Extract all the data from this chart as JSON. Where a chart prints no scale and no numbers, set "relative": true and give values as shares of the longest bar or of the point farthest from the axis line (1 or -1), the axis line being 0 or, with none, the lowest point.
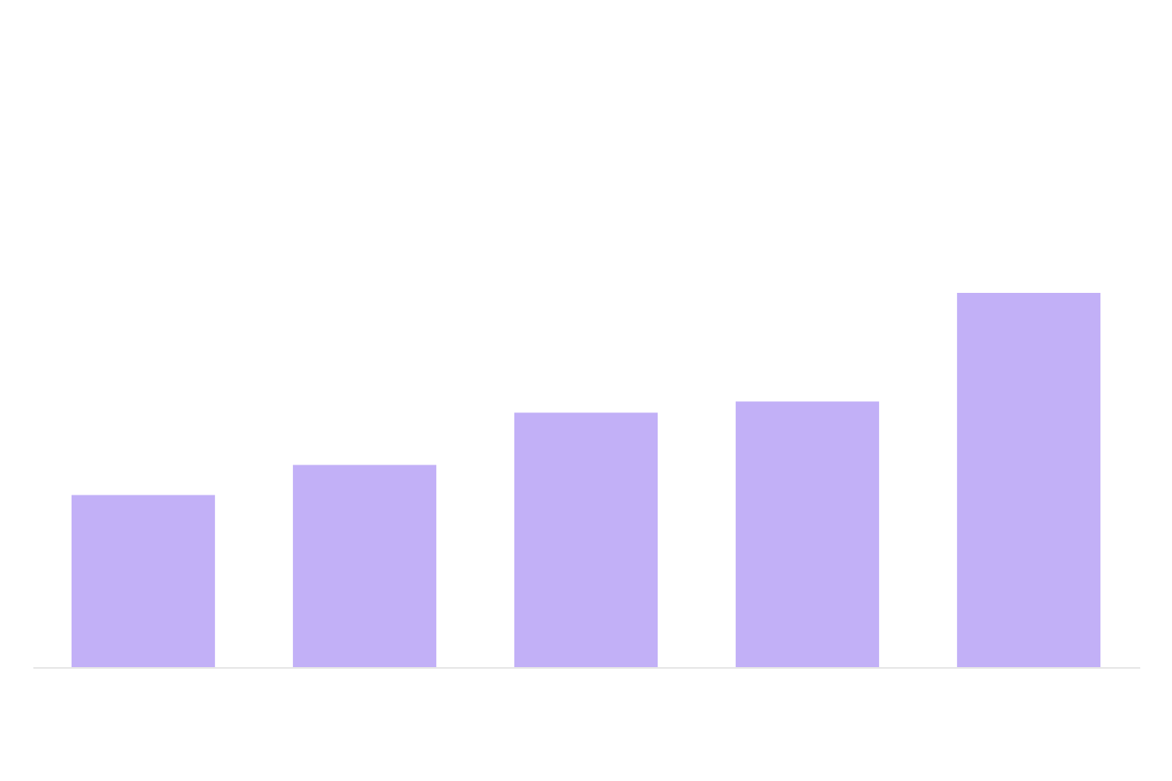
{
  "chart_data": {
    "type": "bar",
    "relative": true,
    "categories": [
      null,
      null,
      null,
      null,
      null
    ],
    "values": [
      0.46,
      0.54,
      0.68,
      0.71,
      1
    ],
    "color": "#c2b0f7"
  }
}
